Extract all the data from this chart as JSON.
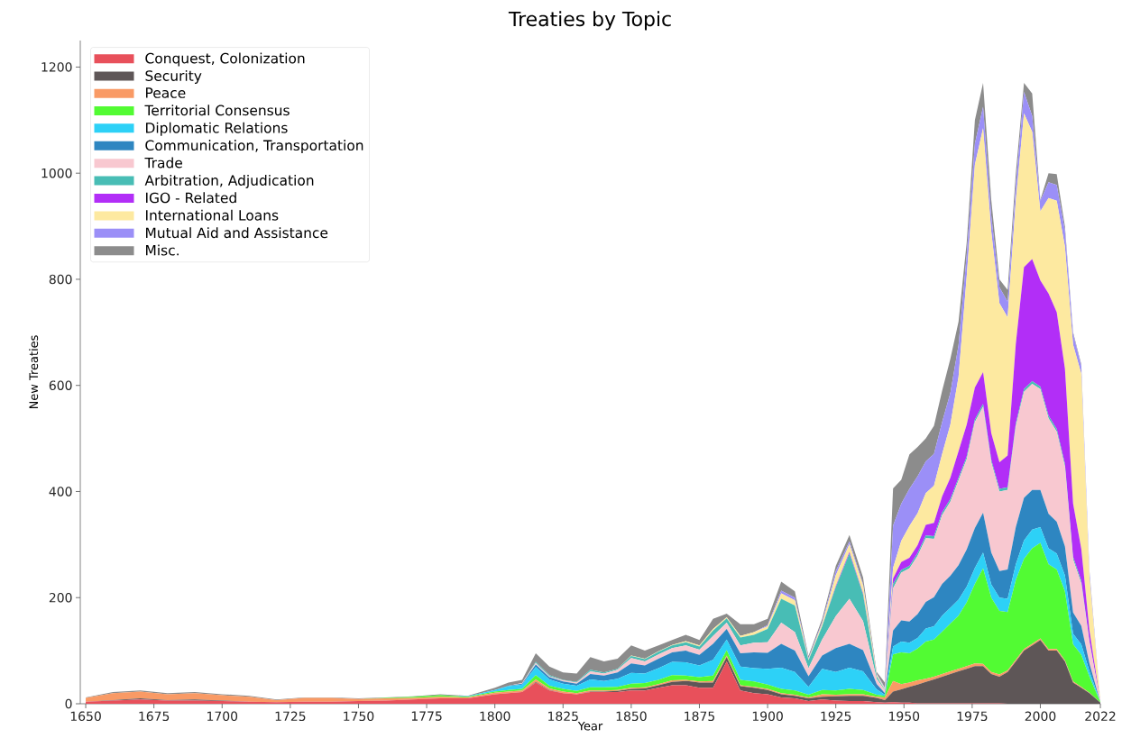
{
  "chart_data": {
    "type": "area",
    "stacked": true,
    "title": "Treaties by Topic",
    "xlabel": "Year",
    "ylabel": "New Treaties",
    "legend": "top left",
    "xlim": [
      1648,
      2022
    ],
    "ylim": [
      0,
      1250
    ],
    "xticks": [
      1650,
      1675,
      1700,
      1725,
      1750,
      1775,
      1800,
      1825,
      1850,
      1875,
      1900,
      1925,
      1950,
      1975,
      2000,
      2022
    ],
    "yticks": [
      0,
      200,
      400,
      600,
      800,
      1000,
      1200
    ],
    "x": [
      1650,
      1660,
      1670,
      1680,
      1690,
      1700,
      1710,
      1720,
      1730,
      1740,
      1750,
      1760,
      1770,
      1780,
      1790,
      1800,
      1805,
      1810,
      1815,
      1820,
      1825,
      1830,
      1835,
      1840,
      1845,
      1850,
      1855,
      1860,
      1865,
      1870,
      1875,
      1880,
      1885,
      1890,
      1895,
      1900,
      1905,
      1910,
      1915,
      1920,
      1925,
      1930,
      1935,
      1940,
      1943,
      1946,
      1949,
      1952,
      1955,
      1958,
      1961,
      1964,
      1967,
      1970,
      1973,
      1976,
      1979,
      1982,
      1985,
      1988,
      1991,
      1994,
      1997,
      2000,
      2003,
      2006,
      2009,
      2012,
      2015,
      2018,
      2022
    ],
    "series": [
      {
        "name": "Conquest, Colonization",
        "color": "#e8505b",
        "values": [
          4,
          6,
          8,
          6,
          6,
          5,
          4,
          3,
          4,
          4,
          5,
          6,
          8,
          10,
          10,
          18,
          20,
          22,
          40,
          25,
          20,
          18,
          22,
          22,
          22,
          25,
          25,
          30,
          35,
          35,
          30,
          30,
          80,
          25,
          20,
          18,
          12,
          10,
          5,
          8,
          6,
          5,
          5,
          3,
          2,
          3,
          2,
          2,
          1,
          1,
          1,
          1,
          1,
          1,
          1,
          1,
          1,
          1,
          1,
          0,
          0,
          0,
          0,
          0,
          0,
          0,
          0,
          0,
          0,
          0,
          0
        ]
      },
      {
        "name": "Security",
        "color": "#5e5657",
        "values": [
          0,
          1,
          2,
          1,
          2,
          1,
          0,
          0,
          0,
          0,
          0,
          0,
          0,
          0,
          0,
          0,
          0,
          0,
          1,
          1,
          0,
          0,
          1,
          1,
          2,
          3,
          4,
          5,
          6,
          8,
          10,
          10,
          8,
          8,
          10,
          8,
          6,
          5,
          5,
          5,
          8,
          10,
          10,
          8,
          5,
          20,
          25,
          30,
          35,
          40,
          45,
          50,
          55,
          60,
          65,
          70,
          70,
          55,
          50,
          60,
          80,
          100,
          110,
          120,
          100,
          100,
          80,
          40,
          30,
          20,
          2
        ]
      },
      {
        "name": "Peace",
        "color": "#f99a65",
        "values": [
          7,
          13,
          13,
          11,
          12,
          10,
          9,
          4,
          7,
          7,
          4,
          4,
          3,
          3,
          2,
          3,
          3,
          3,
          5,
          3,
          3,
          2,
          2,
          2,
          2,
          2,
          2,
          2,
          3,
          2,
          2,
          3,
          3,
          2,
          2,
          2,
          2,
          2,
          2,
          5,
          3,
          3,
          3,
          2,
          5,
          20,
          10,
          8,
          8,
          6,
          5,
          5,
          5,
          5,
          5,
          5,
          4,
          4,
          4,
          3,
          3,
          3,
          3,
          3,
          3,
          3,
          2,
          2,
          2,
          1,
          0
        ]
      },
      {
        "name": "Territorial Consensus",
        "color": "#52fb33",
        "values": [
          0,
          0,
          0,
          0,
          0,
          0,
          0,
          0,
          0,
          0,
          0,
          1,
          2,
          3,
          1,
          2,
          3,
          3,
          8,
          5,
          5,
          4,
          6,
          6,
          6,
          8,
          8,
          8,
          10,
          8,
          8,
          10,
          10,
          10,
          10,
          8,
          8,
          8,
          5,
          8,
          8,
          10,
          8,
          4,
          3,
          50,
          60,
          55,
          60,
          70,
          70,
          80,
          90,
          100,
          120,
          150,
          180,
          140,
          120,
          110,
          150,
          170,
          180,
          180,
          160,
          150,
          130,
          70,
          60,
          30,
          1
        ]
      },
      {
        "name": "Diplomatic Relations",
        "color": "#2dd1f7",
        "values": [
          0,
          0,
          0,
          0,
          0,
          0,
          0,
          0,
          0,
          0,
          0,
          0,
          0,
          0,
          1,
          3,
          7,
          8,
          15,
          12,
          10,
          10,
          15,
          12,
          15,
          20,
          18,
          22,
          25,
          25,
          22,
          30,
          20,
          25,
          25,
          30,
          40,
          35,
          15,
          40,
          35,
          40,
          35,
          10,
          2,
          15,
          20,
          20,
          20,
          25,
          25,
          30,
          30,
          30,
          30,
          30,
          30,
          25,
          25,
          25,
          30,
          35,
          35,
          30,
          30,
          30,
          30,
          20,
          20,
          10,
          0
        ]
      },
      {
        "name": "Communication, Transportation",
        "color": "#2e86c1",
        "values": [
          0,
          0,
          0,
          0,
          0,
          0,
          0,
          0,
          0,
          0,
          0,
          0,
          0,
          0,
          0,
          0,
          1,
          2,
          5,
          4,
          4,
          4,
          10,
          10,
          12,
          18,
          15,
          18,
          18,
          22,
          20,
          30,
          20,
          25,
          30,
          30,
          45,
          40,
          20,
          25,
          45,
          45,
          40,
          10,
          3,
          30,
          40,
          40,
          45,
          50,
          55,
          60,
          60,
          65,
          70,
          75,
          75,
          60,
          50,
          55,
          70,
          80,
          75,
          70,
          65,
          60,
          55,
          40,
          35,
          15,
          0
        ]
      },
      {
        "name": "Trade",
        "color": "#f8c8d0",
        "values": [
          0,
          0,
          0,
          0,
          0,
          0,
          0,
          0,
          0,
          0,
          0,
          0,
          0,
          0,
          0,
          0,
          0,
          1,
          3,
          2,
          2,
          2,
          5,
          4,
          5,
          10,
          8,
          8,
          8,
          10,
          10,
          15,
          12,
          15,
          18,
          20,
          40,
          35,
          15,
          30,
          60,
          85,
          55,
          10,
          5,
          80,
          90,
          100,
          110,
          120,
          110,
          130,
          140,
          160,
          170,
          200,
          200,
          170,
          150,
          150,
          190,
          200,
          200,
          190,
          180,
          170,
          150,
          100,
          80,
          40,
          1
        ]
      },
      {
        "name": "Arbitration, Adjudication",
        "color": "#48bdb5",
        "values": [
          0,
          0,
          0,
          0,
          0,
          0,
          0,
          0,
          0,
          0,
          0,
          0,
          0,
          0,
          0,
          0,
          0,
          0,
          2,
          2,
          1,
          1,
          3,
          2,
          2,
          4,
          4,
          5,
          5,
          6,
          6,
          10,
          8,
          15,
          15,
          25,
          45,
          50,
          15,
          25,
          55,
          85,
          50,
          5,
          1,
          8,
          5,
          5,
          5,
          5,
          5,
          5,
          5,
          5,
          5,
          5,
          5,
          5,
          5,
          5,
          5,
          5,
          5,
          5,
          5,
          5,
          5,
          5,
          5,
          2,
          0
        ]
      },
      {
        "name": "IGO - Related",
        "color": "#b22ef7",
        "values": [
          0,
          0,
          0,
          0,
          0,
          0,
          0,
          0,
          0,
          0,
          0,
          0,
          0,
          0,
          0,
          0,
          0,
          0,
          0,
          0,
          0,
          0,
          0,
          0,
          0,
          0,
          0,
          0,
          0,
          0,
          0,
          0,
          0,
          0,
          0,
          0,
          0,
          0,
          0,
          0,
          2,
          3,
          2,
          0,
          0,
          10,
          15,
          15,
          15,
          20,
          25,
          30,
          40,
          50,
          60,
          60,
          60,
          50,
          50,
          60,
          150,
          230,
          230,
          200,
          230,
          220,
          180,
          100,
          60,
          20,
          0
        ]
      },
      {
        "name": "International Loans",
        "color": "#fde9a0",
        "values": [
          0,
          0,
          0,
          0,
          0,
          0,
          0,
          0,
          0,
          0,
          0,
          0,
          0,
          0,
          0,
          0,
          0,
          0,
          0,
          0,
          0,
          0,
          0,
          0,
          0,
          1,
          1,
          1,
          1,
          2,
          2,
          3,
          2,
          3,
          5,
          5,
          10,
          10,
          2,
          5,
          20,
          15,
          15,
          3,
          2,
          20,
          40,
          60,
          60,
          60,
          70,
          80,
          100,
          140,
          280,
          420,
          460,
          380,
          300,
          260,
          270,
          290,
          240,
          130,
          180,
          210,
          230,
          300,
          330,
          100,
          1
        ]
      },
      {
        "name": "Mutual Aid and Assistance",
        "color": "#9b8ff7",
        "values": [
          0,
          0,
          0,
          0,
          0,
          0,
          0,
          0,
          0,
          0,
          0,
          0,
          0,
          0,
          0,
          0,
          0,
          0,
          0,
          0,
          0,
          0,
          0,
          0,
          0,
          0,
          0,
          0,
          0,
          0,
          0,
          0,
          0,
          0,
          0,
          2,
          5,
          5,
          2,
          3,
          8,
          5,
          3,
          2,
          2,
          80,
          70,
          70,
          70,
          60,
          60,
          60,
          60,
          60,
          40,
          40,
          40,
          30,
          30,
          30,
          30,
          40,
          30,
          20,
          30,
          30,
          30,
          20,
          15,
          10,
          0
        ]
      },
      {
        "name": "Misc.",
        "color": "#8c8c8c",
        "values": [
          1,
          2,
          2,
          2,
          2,
          2,
          2,
          1,
          1,
          1,
          1,
          1,
          1,
          2,
          1,
          4,
          6,
          6,
          16,
          16,
          14,
          16,
          24,
          21,
          19,
          19,
          15,
          11,
          9,
          12,
          10,
          19,
          7,
          22,
          15,
          12,
          17,
          12,
          4,
          6,
          10,
          12,
          12,
          3,
          10,
          70,
          45,
          65,
          55,
          43,
          53,
          59,
          64,
          44,
          24,
          44,
          45,
          30,
          15,
          22,
          22,
          17,
          42,
          2,
          17,
          20,
          8,
          3,
          3,
          2,
          0
        ]
      }
    ]
  }
}
